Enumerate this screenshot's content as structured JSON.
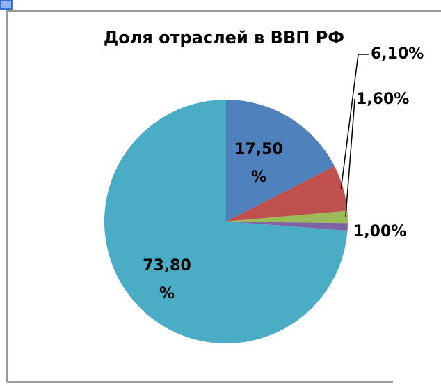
{
  "chart_data": {
    "type": "pie",
    "title": "Доля отраслей в ВВП РФ",
    "values": [
      17.5,
      6.1,
      1.6,
      1.0,
      73.8
    ],
    "value_labels": [
      "17,50 %",
      "6,10%",
      "1,60%",
      "1,00%",
      "73,80 %"
    ],
    "colors": [
      "#4f81bd",
      "#c0504d",
      "#9bbb59",
      "#8064a2",
      "#4bacc6"
    ]
  }
}
